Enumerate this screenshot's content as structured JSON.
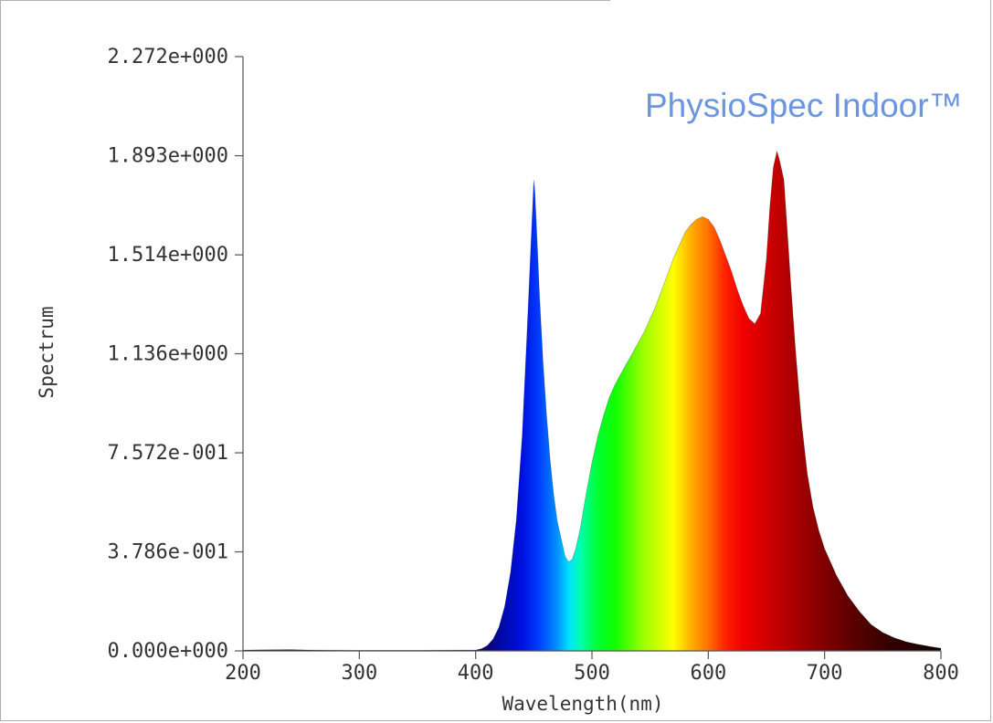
{
  "chart_data": {
    "type": "area",
    "title": "PhysioSpec Indoor™",
    "xlabel": "Wavelength(nm)",
    "ylabel": "Spectrum",
    "xlim": [
      200,
      800
    ],
    "ylim": [
      0,
      2.272
    ],
    "x_ticks": [
      200,
      300,
      400,
      500,
      600,
      700,
      800
    ],
    "y_ticks": [
      0,
      0.3786,
      0.7572,
      1.136,
      1.514,
      1.893,
      2.272
    ],
    "y_tick_labels": [
      "0.000e+000",
      "3.786e-001",
      "7.572e-001",
      "1.136e+000",
      "1.514e+000",
      "1.893e+000",
      "2.272e+000"
    ],
    "fill": "visible-spectrum gradient",
    "grid": false,
    "series": [
      {
        "x": [
          200,
          215,
          240,
          260,
          300,
          350,
          400,
          405,
          410,
          415,
          420,
          425,
          430,
          435,
          440,
          444,
          447,
          449,
          450,
          451,
          453,
          455,
          458,
          461,
          464,
          467,
          470,
          474,
          477,
          480,
          483,
          486,
          490,
          495,
          500,
          505,
          510,
          515,
          520,
          525,
          530,
          535,
          540,
          545,
          550,
          555,
          560,
          565,
          570,
          575,
          580,
          585,
          590,
          595,
          600,
          605,
          610,
          615,
          620,
          625,
          630,
          635,
          640,
          645,
          650,
          653,
          656,
          659,
          661,
          663,
          665,
          668,
          671,
          675,
          680,
          685,
          690,
          695,
          700,
          710,
          720,
          730,
          740,
          750,
          760,
          770,
          780,
          790,
          800
        ],
        "y": [
          0.003,
          0.004,
          0.005,
          0.003,
          0.002,
          0.002,
          0.003,
          0.008,
          0.02,
          0.045,
          0.09,
          0.17,
          0.3,
          0.5,
          0.82,
          1.2,
          1.5,
          1.7,
          1.8,
          1.75,
          1.55,
          1.35,
          1.1,
          0.9,
          0.73,
          0.6,
          0.5,
          0.42,
          0.36,
          0.34,
          0.35,
          0.39,
          0.47,
          0.6,
          0.72,
          0.82,
          0.9,
          0.97,
          1.02,
          1.06,
          1.1,
          1.14,
          1.18,
          1.22,
          1.27,
          1.32,
          1.38,
          1.44,
          1.5,
          1.55,
          1.6,
          1.63,
          1.65,
          1.66,
          1.65,
          1.62,
          1.57,
          1.51,
          1.45,
          1.38,
          1.32,
          1.27,
          1.25,
          1.29,
          1.5,
          1.7,
          1.85,
          1.91,
          1.88,
          1.84,
          1.8,
          1.6,
          1.4,
          1.15,
          0.88,
          0.68,
          0.55,
          0.46,
          0.39,
          0.29,
          0.21,
          0.15,
          0.1,
          0.07,
          0.05,
          0.035,
          0.025,
          0.017,
          0.01
        ]
      }
    ]
  }
}
